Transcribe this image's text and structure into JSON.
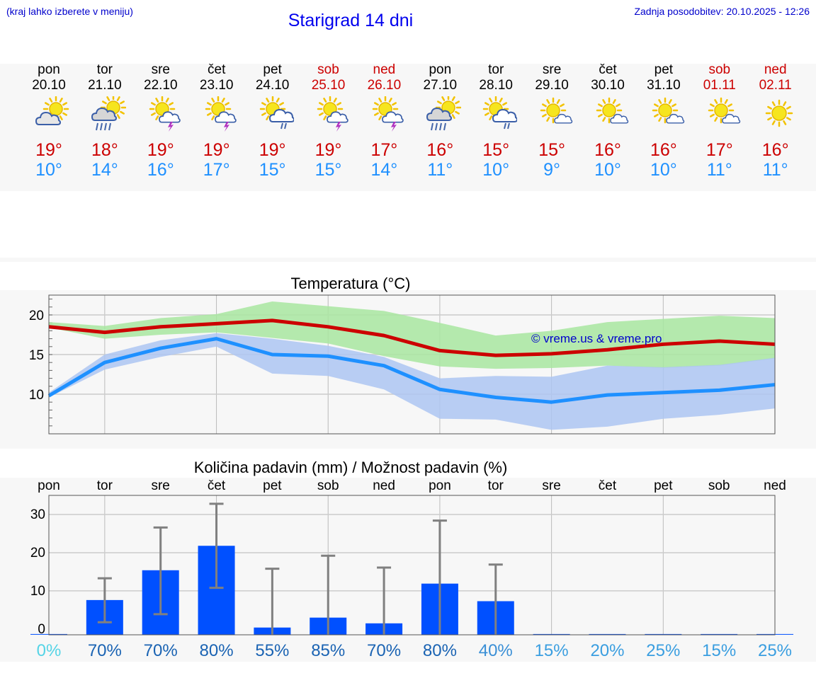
{
  "header": {
    "hint": "(kraj lahko izberete v meniju)",
    "title": "Starigrad 14 dni",
    "updated": "Zadnja posodobitev: 20.10.2025 - 12:26"
  },
  "days": [
    {
      "name": "pon",
      "date": "20.10",
      "max": "19°",
      "min": "10°",
      "icon": "partly-cloudy-icon",
      "weekend": false
    },
    {
      "name": "tor",
      "date": "21.10",
      "max": "18°",
      "min": "14°",
      "icon": "rain-icon",
      "weekend": false
    },
    {
      "name": "sre",
      "date": "22.10",
      "max": "19°",
      "min": "16°",
      "icon": "thunderstorm-icon",
      "weekend": false
    },
    {
      "name": "čet",
      "date": "23.10",
      "max": "19°",
      "min": "17°",
      "icon": "thunderstorm-icon",
      "weekend": false
    },
    {
      "name": "pet",
      "date": "24.10",
      "max": "19°",
      "min": "15°",
      "icon": "showers-icon",
      "weekend": false
    },
    {
      "name": "sob",
      "date": "25.10",
      "max": "19°",
      "min": "15°",
      "icon": "thunderstorm-icon",
      "weekend": true
    },
    {
      "name": "ned",
      "date": "26.10",
      "max": "17°",
      "min": "14°",
      "icon": "thunderstorm-icon",
      "weekend": true
    },
    {
      "name": "pon",
      "date": "27.10",
      "max": "16°",
      "min": "11°",
      "icon": "rain-icon",
      "weekend": false
    },
    {
      "name": "tor",
      "date": "28.10",
      "max": "15°",
      "min": "10°",
      "icon": "showers-icon",
      "weekend": false
    },
    {
      "name": "sre",
      "date": "29.10",
      "max": "15°",
      "min": "9°",
      "icon": "sun-small-cloud-icon",
      "weekend": false
    },
    {
      "name": "čet",
      "date": "30.10",
      "max": "16°",
      "min": "10°",
      "icon": "sun-small-cloud-icon",
      "weekend": false
    },
    {
      "name": "pet",
      "date": "31.10",
      "max": "16°",
      "min": "10°",
      "icon": "sun-small-cloud-icon",
      "weekend": false
    },
    {
      "name": "sob",
      "date": "01.11",
      "max": "17°",
      "min": "11°",
      "icon": "sun-small-cloud-icon",
      "weekend": true
    },
    {
      "name": "ned",
      "date": "02.11",
      "max": "16°",
      "min": "11°",
      "icon": "sun-icon",
      "weekend": true
    }
  ],
  "colors": {
    "max": "#cc0000",
    "min": "#1e90ff",
    "max_band": "#a8e6a0",
    "min_band": "#adc6f2",
    "bar": "#0050ff",
    "error": "#808080"
  },
  "chart_data": [
    {
      "type": "line",
      "title": "Temperatura (°C)",
      "watermark": "© vreme.us & vreme.pro",
      "x": [
        0,
        1,
        2,
        3,
        4,
        5,
        6,
        7,
        8,
        9,
        10,
        11,
        12,
        13
      ],
      "ylim": [
        5,
        22.5
      ],
      "yticks": [
        10,
        15,
        20
      ],
      "series": [
        {
          "name": "max",
          "values": [
            18.5,
            17.8,
            18.5,
            18.9,
            19.3,
            18.5,
            17.4,
            15.5,
            14.9,
            15.1,
            15.6,
            16.3,
            16.7,
            16.3
          ],
          "band_low": [
            18.4,
            17,
            17.5,
            17.8,
            17.1,
            16.4,
            14.8,
            13.5,
            13.2,
            13.3,
            13.6,
            13.3,
            13.6,
            14.5
          ],
          "band_high": [
            19.1,
            18.6,
            19.6,
            20.1,
            21.7,
            21.1,
            20.5,
            19,
            17.4,
            18,
            19.1,
            19.5,
            19.9,
            19.6
          ]
        },
        {
          "name": "min",
          "values": [
            9.8,
            14,
            15.8,
            17,
            15,
            14.8,
            13.6,
            10.6,
            9.6,
            9,
            9.9,
            10.2,
            10.5,
            11.2
          ],
          "band_low": [
            9.6,
            13.1,
            14.7,
            16,
            12.6,
            12.3,
            10.6,
            6.9,
            6.8,
            5.5,
            5.9,
            6.9,
            7.4,
            8.2
          ],
          "band_high": [
            10.2,
            15,
            16.8,
            17.7,
            17,
            16.1,
            14.7,
            12,
            12.3,
            12.2,
            13.6,
            13.4,
            13.7,
            14.6
          ]
        }
      ]
    },
    {
      "type": "bar",
      "title": "Količina padavin (mm) / Možnost padavin (%)",
      "categories": [
        "pon",
        "tor",
        "sre",
        "čet",
        "pet",
        "sob",
        "ned",
        "pon",
        "tor",
        "sre",
        "čet",
        "pet",
        "sob",
        "ned"
      ],
      "values": [
        0,
        7.6,
        15.4,
        21.8,
        0.4,
        3,
        1.5,
        11.9,
        7.3,
        0,
        0,
        0,
        0,
        0
      ],
      "error_low": [
        0,
        1.8,
        3.9,
        10.8,
        0,
        0,
        0,
        0,
        0,
        0,
        0,
        0,
        0,
        0
      ],
      "error_high": [
        0,
        13.3,
        26.6,
        32.8,
        15.8,
        19.2,
        16.1,
        28.4,
        16.9,
        0,
        0,
        0,
        0,
        0
      ],
      "probability": [
        "0%",
        "70%",
        "70%",
        "80%",
        "55%",
        "85%",
        "70%",
        "80%",
        "40%",
        "15%",
        "20%",
        "25%",
        "15%",
        "25%"
      ],
      "probability_colors": [
        "#55d4e6",
        "#1a63b3",
        "#1a63b3",
        "#1a63b3",
        "#1a63b3",
        "#1a63b3",
        "#1a63b3",
        "#1a63b3",
        "#3a8fd6",
        "#3a9ee0",
        "#3a9ee0",
        "#3a9ee0",
        "#3a9ee0",
        "#3a9ee0"
      ],
      "ylim": [
        -1.5,
        35
      ],
      "yticks": [
        0,
        10,
        20,
        30
      ]
    }
  ]
}
